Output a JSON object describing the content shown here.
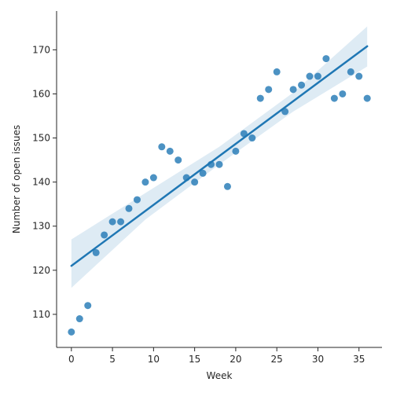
{
  "chart_data": {
    "type": "scatter",
    "title": "",
    "xlabel": "Week",
    "ylabel": "Number of open issues",
    "xlim": [
      -1.8,
      37.8
    ],
    "ylim": [
      102.5,
      178.8
    ],
    "xticks": [
      0,
      5,
      10,
      15,
      20,
      25,
      30,
      35
    ],
    "yticks": [
      110,
      120,
      130,
      140,
      150,
      160,
      170
    ],
    "grid": false,
    "legend": "none",
    "colors": {
      "points": "#1f77b4",
      "line": "#1f77b4",
      "band": "#1f77b4"
    },
    "series": [
      {
        "x": [
          0,
          1,
          2,
          3,
          4,
          5,
          6,
          7,
          8,
          9,
          10,
          11,
          12,
          13,
          14,
          15,
          16,
          17,
          18,
          19,
          20,
          21,
          22,
          23,
          24,
          25,
          26,
          27,
          28,
          29,
          30,
          31,
          32,
          33,
          34,
          35,
          36
        ],
        "y": [
          106,
          109,
          112,
          124,
          128,
          131,
          131,
          134,
          136,
          140,
          141,
          148,
          147,
          145,
          141,
          140,
          142,
          144,
          144,
          139,
          147,
          151,
          150,
          159,
          161,
          165,
          156,
          161,
          162,
          164,
          164,
          168,
          159,
          160,
          165,
          164,
          159
        ]
      }
    ],
    "regression": {
      "line": {
        "x": [
          0,
          36
        ],
        "y": [
          121.0,
          170.8
        ]
      },
      "ci_lower": {
        "x": [
          0,
          9,
          18,
          27,
          36
        ],
        "y": [
          116.0,
          131.5,
          144.0,
          156.0,
          166.2
        ]
      },
      "ci_upper": {
        "x": [
          0,
          9,
          18,
          27,
          36
        ],
        "y": [
          127.0,
          137.5,
          148.0,
          160.3,
          175.3
        ]
      }
    }
  }
}
